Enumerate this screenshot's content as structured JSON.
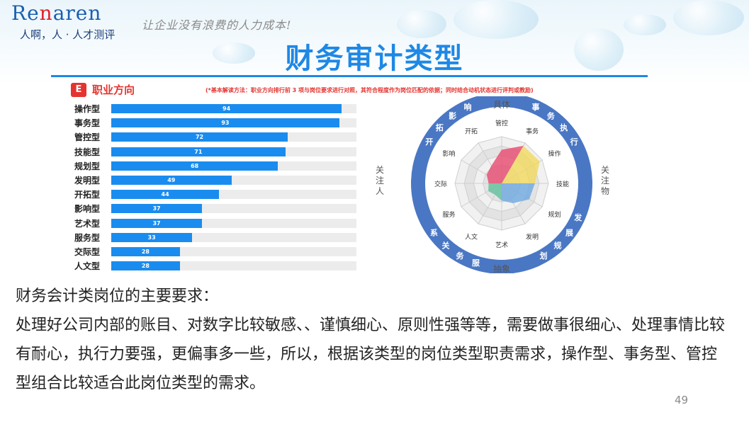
{
  "brand": {
    "logo_pre": "Re",
    "logo_accent": "n",
    "logo_post": "aren",
    "tagline": "人啊，人 · 人才测评"
  },
  "slogan": "让企业没有浪费的人力成本!",
  "title": "财务审计类型",
  "panel": {
    "badge": "E",
    "title": "职业方向",
    "note": "(*基本解读方法：职业方向排行前 3 项与岗位要求进行对照，其符合程度作为岗位匹配的依据；同时结合动机状态进行评判或教励)"
  },
  "chart_data": [
    {
      "type": "bar",
      "categories": [
        "操作型",
        "事务型",
        "管控型",
        "技能型",
        "规划型",
        "发明型",
        "开拓型",
        "影响型",
        "艺术型",
        "服务型",
        "交际型",
        "人文型"
      ],
      "values": [
        94,
        93,
        72,
        71,
        68,
        49,
        44,
        37,
        37,
        33,
        28,
        28
      ],
      "ylim": [
        0,
        100
      ],
      "colors": {
        "bar": "#1a8cef",
        "track": "#ececec"
      }
    },
    {
      "type": "radar",
      "axes": [
        "管控",
        "事务",
        "操作",
        "技能",
        "规划",
        "发明",
        "艺术",
        "人文",
        "服务",
        "交际",
        "影响",
        "开拓"
      ],
      "values": [
        72,
        93,
        94,
        71,
        68,
        49,
        37,
        28,
        33,
        28,
        37,
        44
      ],
      "max": 100,
      "sector_colors": {
        "管控": "#e8456b",
        "事务型区": "#f2d85a",
        "规划型区": "#6aa6e0",
        "服务型区": "#5cbf9a"
      },
      "ring_labels": {
        "top": "具体",
        "bottom": "抽象",
        "left": "关注人",
        "right": "关注物",
        "top_left": "开拓影响",
        "top_right": "事务执行",
        "bottom_left": "服务关系",
        "bottom_right": "发展规划"
      },
      "ring_color": "#4a77c4"
    }
  ],
  "body": {
    "heading": "财务会计类岗位的主要要求：",
    "paragraph": "处理好公司内部的账目、对数字比较敏感、、谨慎细心、原则性强等等，需要做事很细心、处理事情比较有耐心，执行力要强，更偏事多一些，所以，根据该类型的岗位类型职责需求，操作型、事务型、管控型组合比较适合此岗位类型的需求。"
  },
  "page_number": "49"
}
